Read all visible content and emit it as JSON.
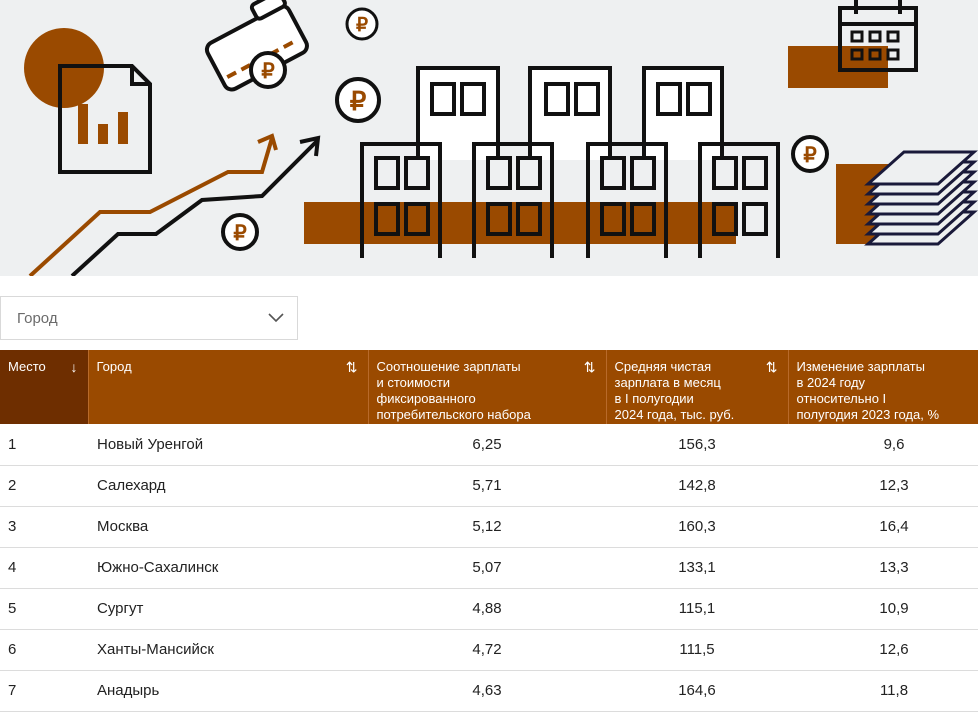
{
  "banner": {
    "accent_color": "#9a4a00",
    "background_color": "#eef0f1",
    "icons": [
      "document-chart-icon",
      "wallet-icon",
      "ruble-coin-icon",
      "growth-arrow-icon",
      "buildings-icon",
      "calendar-icon",
      "banknotes-stack-icon"
    ]
  },
  "filter": {
    "placeholder": "Город",
    "icon": "chevron-down-icon"
  },
  "table": {
    "columns": [
      {
        "label": "Место",
        "sort": "↓"
      },
      {
        "label": "Город",
        "sort": "⇅"
      },
      {
        "label": "Соотношение зарплаты\nи стоимости\nфиксированного\nпотребительского набора",
        "sort": "⇅"
      },
      {
        "label": "Средняя чистая\nзарплата в месяц\nв I полугодии\n2024 года, тыс. руб.",
        "sort": "⇅"
      },
      {
        "label": "Изменение зарплаты\nв 2024 году\nотносительно I\nполугодия 2023 года, %",
        "sort": "⇅"
      }
    ],
    "rows": [
      {
        "place": "1",
        "city": "Новый Уренгой",
        "ratio": "6,25",
        "salary": "156,3",
        "change": "9,6"
      },
      {
        "place": "2",
        "city": "Салехард",
        "ratio": "5,71",
        "salary": "142,8",
        "change": "12,3"
      },
      {
        "place": "3",
        "city": "Москва",
        "ratio": "5,12",
        "salary": "160,3",
        "change": "16,4"
      },
      {
        "place": "4",
        "city": "Южно-Сахалинск",
        "ratio": "5,07",
        "salary": "133,1",
        "change": "13,3"
      },
      {
        "place": "5",
        "city": "Сургут",
        "ratio": "4,88",
        "salary": "115,1",
        "change": "10,9"
      },
      {
        "place": "6",
        "city": "Ханты-Мансийск",
        "ratio": "4,72",
        "salary": "111,5",
        "change": "12,6"
      },
      {
        "place": "7",
        "city": "Анадырь",
        "ratio": "4,63",
        "salary": "164,6",
        "change": "11,8"
      }
    ]
  }
}
